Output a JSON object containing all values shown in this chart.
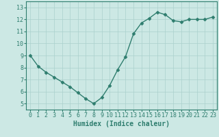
{
  "title": "",
  "xlabel": "Humidex (Indice chaleur)",
  "x": [
    0,
    1,
    2,
    3,
    4,
    5,
    6,
    7,
    8,
    9,
    10,
    11,
    12,
    13,
    14,
    15,
    16,
    17,
    18,
    19,
    20,
    21,
    22,
    23
  ],
  "y": [
    9.0,
    8.1,
    7.6,
    7.2,
    6.8,
    6.4,
    5.9,
    5.4,
    5.0,
    5.5,
    6.5,
    7.8,
    8.9,
    10.8,
    11.7,
    12.1,
    12.6,
    12.4,
    11.9,
    11.8,
    12.0,
    12.0,
    12.0,
    12.2
  ],
  "line_color": "#2e7d6e",
  "marker": "D",
  "marker_size": 2.5,
  "bg_color": "#cce8e4",
  "grid_color": "#aad0cc",
  "axis_color": "#2e7d6e",
  "spine_color": "#2e7d6e",
  "ylim": [
    4.5,
    13.5
  ],
  "xlim": [
    -0.5,
    23.5
  ],
  "yticks": [
    5,
    6,
    7,
    8,
    9,
    10,
    11,
    12,
    13
  ],
  "xticks": [
    0,
    1,
    2,
    3,
    4,
    5,
    6,
    7,
    8,
    9,
    10,
    11,
    12,
    13,
    14,
    15,
    16,
    17,
    18,
    19,
    20,
    21,
    22,
    23
  ],
  "label_fontsize": 7,
  "tick_fontsize": 6,
  "linewidth": 1.0
}
